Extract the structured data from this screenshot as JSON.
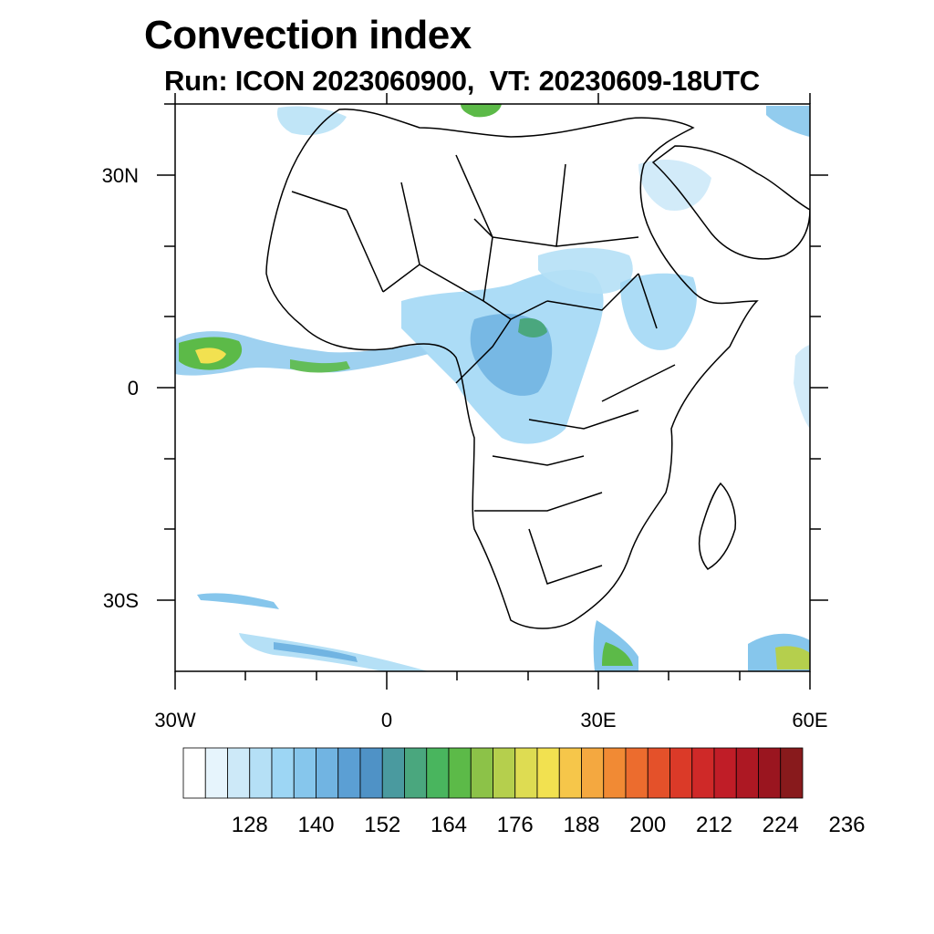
{
  "title": "Convection index",
  "subtitle": "Run: ICON 2023060900,  VT: 20230609-18UTC",
  "map": {
    "lat_labels": [
      "30N",
      "0",
      "30S"
    ],
    "lon_labels": [
      "30W",
      "0",
      "30E",
      "60E"
    ],
    "lon_range": [
      -30,
      60
    ],
    "lat_range": [
      -40,
      40
    ]
  },
  "colorbar": {
    "labels": [
      "128",
      "140",
      "152",
      "164",
      "176",
      "188",
      "200",
      "212",
      "224",
      "236"
    ],
    "colors": [
      "#ffffff",
      "#e6f4fc",
      "#cde9f8",
      "#b5e0f6",
      "#9dd6f4",
      "#86c6ec",
      "#71b4e2",
      "#5b9fd4",
      "#4f92c6",
      "#4a9a9f",
      "#4aa77e",
      "#49b55e",
      "#5cba48",
      "#8cc248",
      "#b5cf4d",
      "#dedc52",
      "#f2e150",
      "#f6c64a",
      "#f4a840",
      "#f18a34",
      "#ec6c2e",
      "#e4512a",
      "#db3a28",
      "#cf2928",
      "#c01d27",
      "#ad1823",
      "#9a151f",
      "#881a1c"
    ]
  }
}
